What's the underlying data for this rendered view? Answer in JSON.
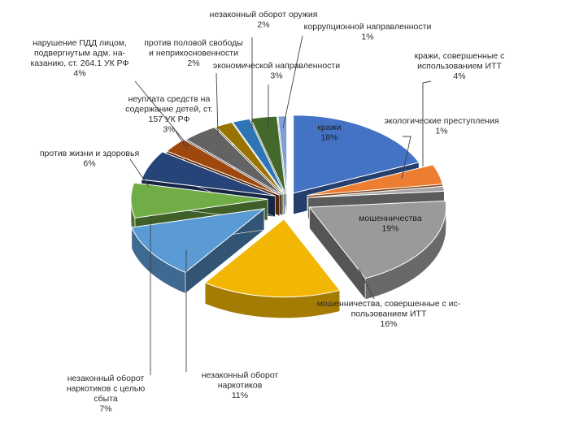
{
  "chart_data": {
    "type": "pie",
    "style": "3d-exploded",
    "title": "",
    "slices": [
      {
        "label": "кражи",
        "lines": [
          "кражи"
        ],
        "value": 18,
        "display": "18%",
        "color": "#4472c4"
      },
      {
        "label": "кражи, совершенные с использованием ИТТ",
        "lines": [
          "кражи, совершенные с",
          "использованием ИТТ"
        ],
        "value": 4,
        "display": "4%",
        "color": "#ed7d31"
      },
      {
        "label": "экологические преступления",
        "lines": [
          "экологические преступления"
        ],
        "value": 1,
        "display": "1%",
        "color": "#a5a5a5"
      },
      {
        "label": "мошенничества",
        "lines": [
          "мошенничества"
        ],
        "value": 19,
        "display": "19%",
        "color": "#9a9a9a"
      },
      {
        "label": "мошенничества, совершенные с использованием ИТТ",
        "lines": [
          "мошенничества, совершенные с ис-",
          "пользованием ИТТ"
        ],
        "value": 16,
        "display": "16%",
        "color": "#f2b705"
      },
      {
        "label": "незаконный оборот наркотиков",
        "lines": [
          "незаконный оборот",
          "наркотиков"
        ],
        "value": 11,
        "display": "11%",
        "color": "#5b9bd5"
      },
      {
        "label": "незаконный оборот наркотиков с целью сбыта",
        "lines": [
          "незаконный оборот",
          "наркотиков с целью",
          "сбыта"
        ],
        "value": 7,
        "display": "7%",
        "color": "#70ad47"
      },
      {
        "label": "против жизни и здоровья",
        "lines": [
          "против жизни и здоровья"
        ],
        "value": 6,
        "display": "6%",
        "color": "#264478"
      },
      {
        "label": "неуплата средств на содержание детей, ст. 157 УК РФ",
        "lines": [
          "неуплата средств на",
          "содержание детей, ст.",
          "157 УК РФ"
        ],
        "value": 3,
        "display": "3%",
        "color": "#9e480e"
      },
      {
        "label": "нарушение ПДД лицом, подвергнутым адм. наказанию, ст. 264.1 УК РФ",
        "lines": [
          "нарушение ПДД лицом,",
          "подвергнутым адм. на-",
          "казанию, ст. 264.1 УК РФ"
        ],
        "value": 4,
        "display": "4%",
        "color": "#636363"
      },
      {
        "label": "против половой свободы и неприкосновенности",
        "lines": [
          "против половой свободы",
          "и неприкосновенности"
        ],
        "value": 2,
        "display": "2%",
        "color": "#997300"
      },
      {
        "label": "незаконный оборот оружия",
        "lines": [
          "незаконный оборот оружия"
        ],
        "value": 2,
        "display": "2%",
        "color": "#2e75b6"
      },
      {
        "label": "экономической направленности",
        "lines": [
          "экономической направленности"
        ],
        "value": 3,
        "display": "3%",
        "color": "#43682b"
      },
      {
        "label": "коррупционной направленности",
        "lines": [
          "коррупционной направленности"
        ],
        "value": 1,
        "display": "1%",
        "color": "#7f9fd6"
      }
    ]
  }
}
